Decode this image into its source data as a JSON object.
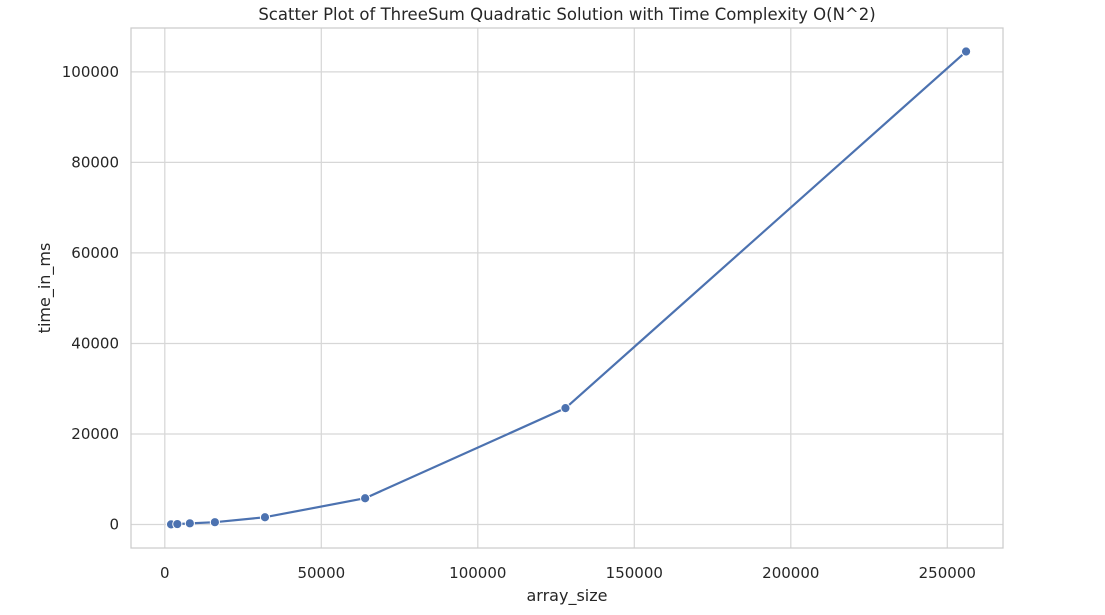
{
  "chart_data": {
    "type": "line",
    "title": "Scatter Plot of ThreeSum Quadratic Solution with Time Complexity O(N^2)",
    "xlabel": "array_size",
    "ylabel": "time_in_ms",
    "xlim": [
      -10800,
      267800
    ],
    "ylim": [
      -5200,
      109700
    ],
    "xticks": [
      0,
      50000,
      100000,
      150000,
      200000,
      250000
    ],
    "yticks": [
      0,
      20000,
      40000,
      60000,
      80000,
      100000
    ],
    "grid": true,
    "style": "whitegrid",
    "series": [
      {
        "color": "#4c72b0",
        "marker": "circle",
        "points": [
          {
            "x": 2000,
            "y": 20
          },
          {
            "x": 4000,
            "y": 90
          },
          {
            "x": 8000,
            "y": 250
          },
          {
            "x": 16000,
            "y": 500
          },
          {
            "x": 32000,
            "y": 1600
          },
          {
            "x": 64000,
            "y": 5800
          },
          {
            "x": 128000,
            "y": 25700
          },
          {
            "x": 256000,
            "y": 104500
          }
        ]
      }
    ]
  }
}
